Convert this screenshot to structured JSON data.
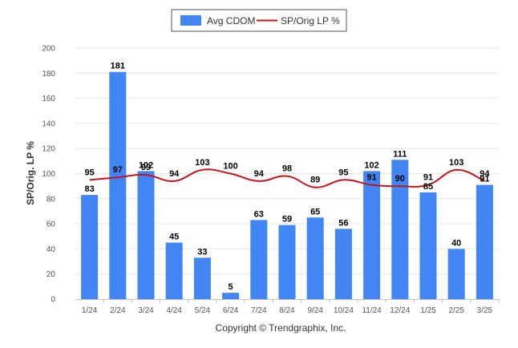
{
  "chart_data": {
    "type": "bar",
    "categories": [
      "1/24",
      "2/24",
      "3/24",
      "4/24",
      "5/24",
      "6/24",
      "7/24",
      "8/24",
      "9/24",
      "10/24",
      "11/24",
      "12/24",
      "1/25",
      "2/25",
      "3/25"
    ],
    "series": [
      {
        "name": "Avg CDOM",
        "type": "bar",
        "color": "#4285f4",
        "values": [
          83,
          181,
          102,
          45,
          33,
          5,
          63,
          59,
          65,
          56,
          102,
          111,
          85,
          40,
          91
        ]
      },
      {
        "name": "SP/Orig LP %",
        "type": "line",
        "color": "#c0171e",
        "values": [
          95,
          97,
          99,
          94,
          103,
          100,
          94,
          98,
          89,
          95,
          91,
          90,
          91,
          103,
          94
        ]
      }
    ],
    "ylabel": "SP/Orig. LP %",
    "xlabel": "",
    "ylim": [
      0,
      200
    ],
    "yticks": [
      0,
      20,
      40,
      60,
      80,
      100,
      120,
      140,
      160,
      180,
      200
    ],
    "grid": true,
    "legend_position": "top-center"
  },
  "footer": {
    "copyright": "Copyright © Trendgraphix, Inc."
  }
}
